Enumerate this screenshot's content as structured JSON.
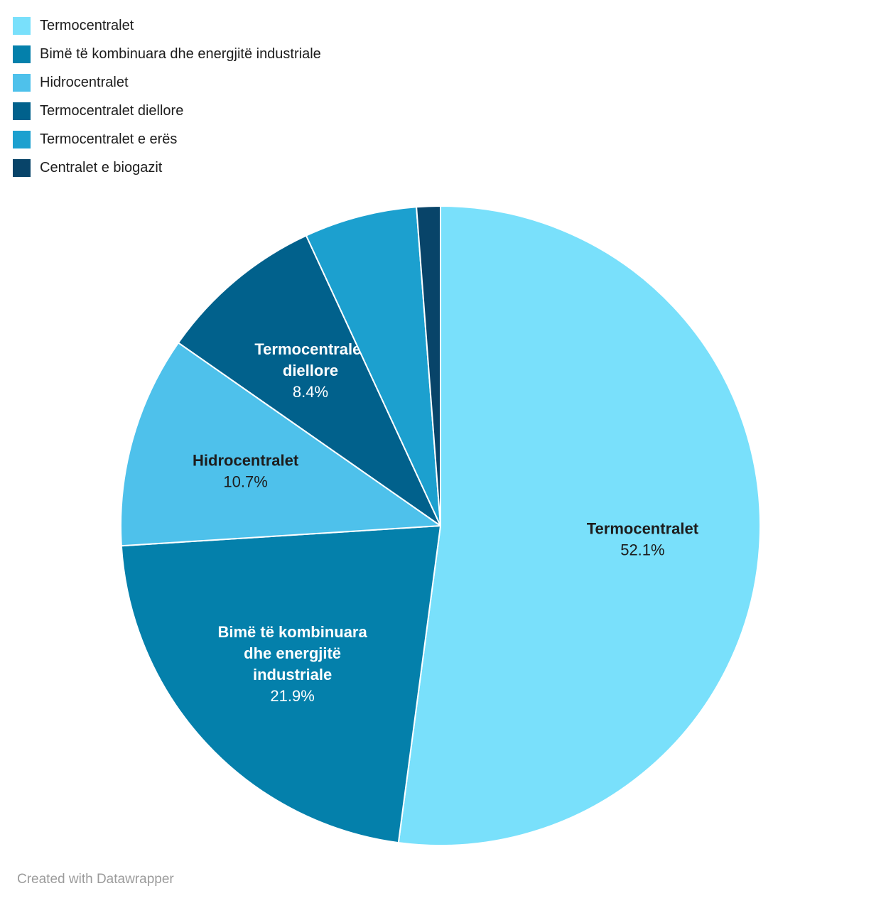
{
  "footer": {
    "text": "Created with Datawrapper"
  },
  "chart_data": {
    "type": "pie",
    "title": "",
    "legend_position": "top-left",
    "start_angle_deg": 0,
    "direction": "clockwise",
    "total": 100,
    "slices": [
      {
        "label": "Termocentralet",
        "value": 52.1,
        "display_pct": "52.1%",
        "color": "#79E0FB",
        "label_color": "#1d1d1d",
        "label_visible": true,
        "label_lines": [
          "Termocentralet"
        ]
      },
      {
        "label": "Bimë të kombinuara dhe energjitë industriale",
        "value": 21.9,
        "display_pct": "21.9%",
        "color": "#0480AB",
        "label_color": "#ffffff",
        "label_visible": true,
        "label_lines": [
          "Bimë të kombinuara",
          "dhe energjitë",
          "industriale"
        ]
      },
      {
        "label": "Hidrocentralet",
        "value": 10.7,
        "display_pct": "10.7%",
        "color": "#4EC1EB",
        "label_color": "#1d1d1d",
        "label_visible": true,
        "label_lines": [
          "Hidrocentralet"
        ]
      },
      {
        "label": "Termocentralet diellore",
        "value": 8.4,
        "display_pct": "8.4%",
        "color": "#01618C",
        "label_color": "#ffffff",
        "label_visible": true,
        "label_lines": [
          "Termocentralet",
          "diellore"
        ]
      },
      {
        "label": "Termocentralet e erës",
        "value": 5.7,
        "display_pct": "",
        "color": "#1CA0CF",
        "label_color": "#ffffff",
        "label_visible": false,
        "label_lines": []
      },
      {
        "label": "Centralet e biogazit",
        "value": 1.2,
        "display_pct": "",
        "color": "#084469",
        "label_color": "#ffffff",
        "label_visible": false,
        "label_lines": []
      }
    ]
  }
}
